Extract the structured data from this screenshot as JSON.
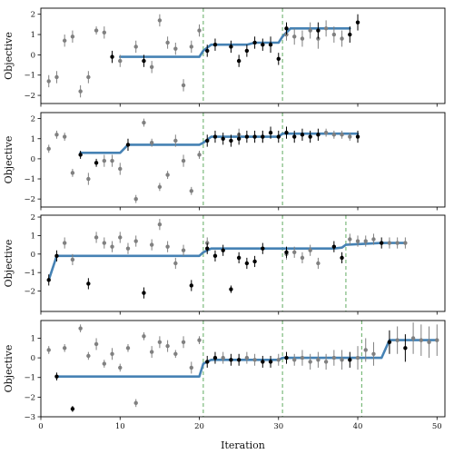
{
  "chart_data": [
    {
      "type": "scatter",
      "title": "",
      "xlabel": "",
      "ylabel": "Objective",
      "xlim": [
        0,
        51
      ],
      "ylim": [
        -2.4,
        2.3
      ],
      "yticks": [
        -2,
        -1,
        0,
        1,
        2
      ],
      "xticks": [
        0,
        10,
        20,
        30,
        40,
        50
      ],
      "vlines": [
        20.5,
        30.5
      ],
      "step_line": [
        [
          10,
          -0.1
        ],
        [
          20,
          -0.1
        ],
        [
          20.5,
          0.2
        ],
        [
          21.5,
          0.5
        ],
        [
          26,
          0.5
        ],
        [
          27,
          0.6
        ],
        [
          30,
          0.6
        ],
        [
          30.5,
          0.9
        ],
        [
          31.5,
          1.3
        ],
        [
          39,
          1.3
        ]
      ],
      "series": [
        {
          "color": "#808080",
          "points": [
            [
              1,
              -1.3,
              0.3
            ],
            [
              2,
              -1.1,
              0.3
            ],
            [
              3,
              0.7,
              0.3
            ],
            [
              4,
              0.9,
              0.3
            ],
            [
              5,
              -1.8,
              0.3
            ],
            [
              6,
              -1.1,
              0.3
            ],
            [
              7,
              1.2,
              0.2
            ],
            [
              8,
              1.1,
              0.3
            ],
            [
              10,
              -0.3,
              0.3
            ],
            [
              12,
              0.4,
              0.3
            ],
            [
              14,
              -0.6,
              0.3
            ],
            [
              15,
              1.7,
              0.3
            ],
            [
              16,
              0.6,
              0.3
            ],
            [
              17,
              0.3,
              0.3
            ],
            [
              18,
              -1.5,
              0.3
            ],
            [
              19,
              0.4,
              0.3
            ],
            [
              20,
              1.2,
              0.3
            ],
            [
              31,
              1.0,
              0.3
            ],
            [
              32,
              0.9,
              0.4
            ],
            [
              33,
              0.8,
              0.4
            ],
            [
              34,
              1.2,
              0.4
            ],
            [
              35,
              0.8,
              0.5
            ],
            [
              36,
              1.3,
              0.4
            ],
            [
              37,
              1.0,
              0.4
            ],
            [
              38,
              0.8,
              0.4
            ]
          ]
        },
        {
          "color": "#000000",
          "points": [
            [
              9,
              -0.1,
              0.3
            ],
            [
              13,
              -0.3,
              0.3
            ],
            [
              21,
              0.2,
              0.3
            ],
            [
              22,
              0.5,
              0.3
            ],
            [
              24,
              0.4,
              0.3
            ],
            [
              25,
              -0.3,
              0.3
            ],
            [
              26,
              0.2,
              0.3
            ],
            [
              27,
              0.6,
              0.3
            ],
            [
              28,
              0.5,
              0.3
            ],
            [
              29,
              0.5,
              0.4
            ],
            [
              30,
              -0.2,
              0.3
            ],
            [
              31,
              1.3,
              0.3
            ],
            [
              35,
              1.2,
              0.4
            ],
            [
              39,
              1.0,
              0.4
            ],
            [
              40,
              1.6,
              0.4
            ]
          ]
        }
      ]
    },
    {
      "type": "scatter",
      "title": "",
      "xlabel": "",
      "ylabel": "Objective",
      "xlim": [
        0,
        51
      ],
      "ylim": [
        -2.4,
        2.3
      ],
      "yticks": [
        -2,
        -1,
        0,
        1,
        2
      ],
      "xticks": [
        0,
        10,
        20,
        30,
        40,
        50
      ],
      "vlines": [
        20.5,
        30.5
      ],
      "step_line": [
        [
          5,
          0.3
        ],
        [
          10,
          0.3
        ],
        [
          11,
          0.7
        ],
        [
          20,
          0.7
        ],
        [
          20.5,
          0.8
        ],
        [
          21.5,
          1.1
        ],
        [
          30,
          1.1
        ],
        [
          30.5,
          1.25
        ],
        [
          31.5,
          1.25
        ],
        [
          40,
          1.25
        ]
      ],
      "series": [
        {
          "color": "#808080",
          "points": [
            [
              1,
              0.5,
              0.2
            ],
            [
              2,
              1.2,
              0.2
            ],
            [
              3,
              1.1,
              0.2
            ],
            [
              4,
              -0.7,
              0.2
            ],
            [
              6,
              -1.0,
              0.3
            ],
            [
              8,
              -0.1,
              0.3
            ],
            [
              9,
              -0.1,
              0.3
            ],
            [
              10,
              -0.5,
              0.3
            ],
            [
              12,
              -2.0,
              0.2
            ],
            [
              13,
              1.8,
              0.2
            ],
            [
              14,
              0.8,
              0.2
            ],
            [
              15,
              -1.4,
              0.2
            ],
            [
              16,
              -0.8,
              0.2
            ],
            [
              17,
              0.9,
              0.3
            ],
            [
              18,
              -0.1,
              0.3
            ],
            [
              19,
              -1.6,
              0.2
            ],
            [
              20,
              0.2,
              0.2
            ],
            [
              25,
              1.2,
              0.3
            ],
            [
              28,
              1.1,
              0.3
            ],
            [
              36,
              1.3,
              0.2
            ],
            [
              37,
              1.2,
              0.2
            ],
            [
              38,
              1.2,
              0.2
            ],
            [
              39,
              1.1,
              0.2
            ]
          ]
        },
        {
          "color": "#000000",
          "points": [
            [
              5,
              0.2,
              0.2
            ],
            [
              7,
              -0.2,
              0.2
            ],
            [
              11,
              0.7,
              0.3
            ],
            [
              21,
              0.9,
              0.3
            ],
            [
              22,
              1.1,
              0.3
            ],
            [
              23,
              1.0,
              0.3
            ],
            [
              24,
              0.9,
              0.3
            ],
            [
              25,
              1.0,
              0.3
            ],
            [
              26,
              1.1,
              0.3
            ],
            [
              27,
              1.1,
              0.3
            ],
            [
              28,
              1.1,
              0.3
            ],
            [
              29,
              1.3,
              0.3
            ],
            [
              30,
              1.1,
              0.3
            ],
            [
              31,
              1.3,
              0.3
            ],
            [
              32,
              1.1,
              0.3
            ],
            [
              33,
              1.2,
              0.3
            ],
            [
              34,
              1.1,
              0.3
            ],
            [
              35,
              1.2,
              0.3
            ],
            [
              40,
              1.1,
              0.3
            ]
          ]
        }
      ]
    },
    {
      "type": "scatter",
      "title": "",
      "xlabel": "",
      "ylabel": "Objective",
      "xlim": [
        0,
        51
      ],
      "ylim": [
        -3.1,
        2.1
      ],
      "yticks": [
        -2,
        -1,
        0,
        1,
        2
      ],
      "xticks": [
        0,
        10,
        20,
        30,
        40,
        50
      ],
      "vlines": [
        20.5,
        30.5,
        38.5
      ],
      "step_line": [
        [
          1,
          -1.4
        ],
        [
          2,
          -0.1
        ],
        [
          20,
          -0.1
        ],
        [
          20.5,
          0.1
        ],
        [
          21.5,
          0.3
        ],
        [
          30,
          0.3
        ],
        [
          30.5,
          0.3
        ],
        [
          37,
          0.3
        ],
        [
          38,
          0.35
        ],
        [
          38.5,
          0.5
        ],
        [
          43,
          0.6
        ],
        [
          46,
          0.6
        ]
      ],
      "series": [
        {
          "color": "#808080",
          "points": [
            [
              3,
              0.6,
              0.3
            ],
            [
              4,
              -0.3,
              0.3
            ],
            [
              7,
              0.9,
              0.3
            ],
            [
              8,
              0.6,
              0.3
            ],
            [
              9,
              0.4,
              0.3
            ],
            [
              10,
              0.9,
              0.3
            ],
            [
              11,
              0.3,
              0.3
            ],
            [
              12,
              0.7,
              0.3
            ],
            [
              14,
              0.5,
              0.3
            ],
            [
              15,
              1.6,
              0.3
            ],
            [
              16,
              0.4,
              0.3
            ],
            [
              17,
              -0.5,
              0.3
            ],
            [
              18,
              0.2,
              0.3
            ],
            [
              21,
              0.6,
              0.3
            ],
            [
              31,
              0.0,
              0.3
            ],
            [
              32,
              0.1,
              0.3
            ],
            [
              33,
              -0.2,
              0.3
            ],
            [
              34,
              0.2,
              0.3
            ],
            [
              35,
              -0.5,
              0.3
            ],
            [
              39,
              0.8,
              0.3
            ],
            [
              40,
              0.7,
              0.3
            ],
            [
              41,
              0.7,
              0.3
            ],
            [
              42,
              0.8,
              0.3
            ],
            [
              44,
              0.6,
              0.3
            ],
            [
              45,
              0.6,
              0.3
            ],
            [
              46,
              0.6,
              0.3
            ]
          ]
        },
        {
          "color": "#000000",
          "points": [
            [
              1,
              -1.4,
              0.3
            ],
            [
              2,
              -0.1,
              0.3
            ],
            [
              6,
              -1.6,
              0.3
            ],
            [
              13,
              -2.1,
              0.3
            ],
            [
              19,
              -1.7,
              0.3
            ],
            [
              21,
              0.3,
              0.3
            ],
            [
              22,
              -0.1,
              0.3
            ],
            [
              23,
              0.2,
              0.3
            ],
            [
              24,
              -1.9,
              0.2
            ],
            [
              25,
              -0.2,
              0.3
            ],
            [
              26,
              -0.5,
              0.3
            ],
            [
              27,
              -0.4,
              0.3
            ],
            [
              28,
              0.3,
              0.3
            ],
            [
              31,
              0.1,
              0.3
            ],
            [
              37,
              0.4,
              0.3
            ],
            [
              38,
              -0.2,
              0.3
            ],
            [
              43,
              0.6,
              0.3
            ]
          ]
        }
      ]
    },
    {
      "type": "scatter",
      "title": "",
      "xlabel": "Iteration",
      "ylabel": "Objective",
      "xlim": [
        0,
        51
      ],
      "ylim": [
        -3.0,
        1.9
      ],
      "yticks": [
        -3,
        -2,
        -1,
        0,
        1
      ],
      "xticks": [
        0,
        10,
        20,
        30,
        40,
        50
      ],
      "vlines": [
        20.5,
        30.5,
        40.5
      ],
      "step_line": [
        [
          2,
          -0.95
        ],
        [
          20,
          -0.95
        ],
        [
          20.5,
          -0.3
        ],
        [
          21.5,
          -0.1
        ],
        [
          30,
          -0.1
        ],
        [
          30.5,
          0.0
        ],
        [
          40.5,
          0.0
        ],
        [
          43,
          0.0
        ],
        [
          44,
          0.9
        ],
        [
          50,
          0.9
        ]
      ],
      "series": [
        {
          "color": "#808080",
          "points": [
            [
              1,
              0.4,
              0.2
            ],
            [
              3,
              0.5,
              0.2
            ],
            [
              5,
              1.5,
              0.2
            ],
            [
              6,
              0.1,
              0.2
            ],
            [
              7,
              0.7,
              0.3
            ],
            [
              8,
              -0.3,
              0.2
            ],
            [
              9,
              0.2,
              0.3
            ],
            [
              10,
              -0.5,
              0.2
            ],
            [
              11,
              0.5,
              0.2
            ],
            [
              12,
              -2.3,
              0.2
            ],
            [
              13,
              1.1,
              0.2
            ],
            [
              14,
              0.3,
              0.3
            ],
            [
              15,
              0.8,
              0.3
            ],
            [
              16,
              0.6,
              0.3
            ],
            [
              17,
              0.2,
              0.2
            ],
            [
              18,
              0.8,
              0.3
            ],
            [
              19,
              -0.5,
              0.3
            ],
            [
              20,
              0.9,
              0.2
            ],
            [
              23,
              0.0,
              0.3
            ],
            [
              26,
              0.0,
              0.3
            ],
            [
              27,
              -0.1,
              0.3
            ],
            [
              30,
              -0.1,
              0.3
            ],
            [
              32,
              -0.1,
              0.3
            ],
            [
              33,
              0.0,
              0.4
            ],
            [
              34,
              -0.2,
              0.4
            ],
            [
              35,
              -0.1,
              0.4
            ],
            [
              36,
              -0.2,
              0.4
            ],
            [
              37,
              0.0,
              0.4
            ],
            [
              38,
              -0.1,
              0.5
            ],
            [
              40,
              0.0,
              0.6
            ],
            [
              41,
              0.4,
              0.6
            ],
            [
              42,
              0.2,
              0.6
            ],
            [
              45,
              0.9,
              0.7
            ],
            [
              47,
              1.0,
              0.8
            ],
            [
              48,
              0.9,
              0.8
            ],
            [
              49,
              0.8,
              0.8
            ],
            [
              50,
              0.9,
              0.8
            ]
          ]
        },
        {
          "color": "#000000",
          "points": [
            [
              2,
              -0.95,
              0.2
            ],
            [
              4,
              -2.6,
              0.15
            ],
            [
              21,
              -0.2,
              0.3
            ],
            [
              22,
              0.0,
              0.3
            ],
            [
              24,
              -0.1,
              0.3
            ],
            [
              25,
              -0.1,
              0.3
            ],
            [
              28,
              -0.2,
              0.3
            ],
            [
              29,
              -0.2,
              0.3
            ],
            [
              31,
              0.0,
              0.3
            ],
            [
              39,
              -0.1,
              0.4
            ],
            [
              44,
              0.8,
              0.6
            ],
            [
              46,
              0.5,
              0.7
            ]
          ]
        }
      ]
    }
  ]
}
